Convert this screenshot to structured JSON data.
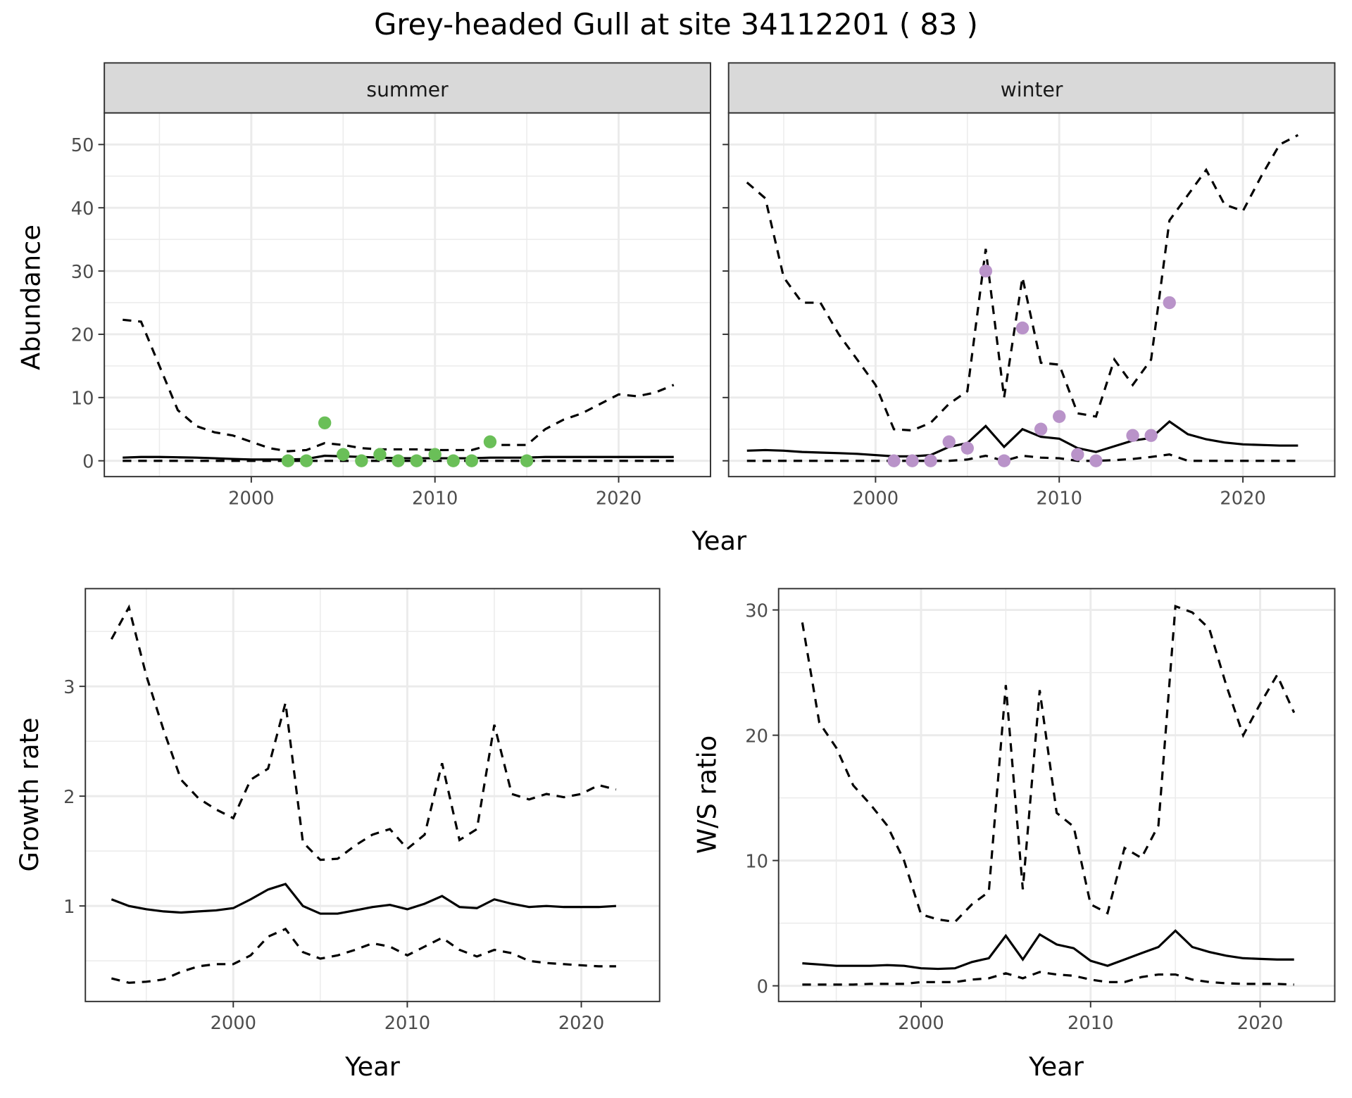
{
  "title": "Grey-headed Gull at site 34112201 ( 83 )",
  "colors": {
    "summer_points": "#6abf58",
    "winter_points": "#b993c9",
    "line": "#000000",
    "grid": "#ebebeb",
    "strip": "#d9d9d9"
  },
  "chart_data": [
    {
      "id": "summer",
      "type": "line",
      "facet": "summer",
      "xlabel": "Year",
      "ylabel": "Abundance",
      "xlim": [
        1992,
        2025
      ],
      "ylim": [
        -2.5,
        55
      ],
      "xticks": [
        2000,
        2010,
        2020
      ],
      "yticks": [
        0,
        10,
        20,
        30,
        40,
        50
      ],
      "x": [
        1993,
        1994,
        1995,
        1996,
        1997,
        1998,
        1999,
        2000,
        2001,
        2002,
        2003,
        2004,
        2005,
        2006,
        2007,
        2008,
        2009,
        2010,
        2011,
        2012,
        2013,
        2014,
        2015,
        2016,
        2017,
        2018,
        2019,
        2020,
        2021,
        2022,
        2023
      ],
      "mean": [
        0.5,
        0.6,
        0.6,
        0.55,
        0.5,
        0.4,
        0.3,
        0.2,
        0.2,
        0.2,
        0.3,
        0.8,
        0.7,
        0.6,
        0.5,
        0.4,
        0.4,
        0.4,
        0.4,
        0.4,
        0.5,
        0.5,
        0.5,
        0.6,
        0.6,
        0.6,
        0.6,
        0.6,
        0.6,
        0.6,
        0.6
      ],
      "lower": [
        0,
        0,
        0,
        0,
        0,
        0,
        0,
        0,
        0,
        0,
        0,
        0,
        0,
        0,
        0,
        0,
        0,
        0,
        0,
        0,
        0,
        0,
        0,
        0,
        0,
        0,
        0,
        0,
        0,
        0,
        0
      ],
      "upper": [
        22.3,
        22,
        15,
        8,
        5.5,
        4.5,
        4,
        3,
        2,
        1.5,
        1.7,
        2.8,
        2.5,
        2,
        1.8,
        1.8,
        1.8,
        1.7,
        1.7,
        1.7,
        2.5,
        2.5,
        2.5,
        5,
        6.5,
        7.5,
        9,
        10.5,
        10.2,
        10.8,
        12
      ],
      "points": {
        "x": [
          2002,
          2003,
          2004,
          2005,
          2006,
          2007,
          2008,
          2009,
          2010,
          2011,
          2012,
          2013,
          2015
        ],
        "y": [
          0,
          0,
          6,
          1,
          0,
          1,
          0,
          0,
          1,
          0,
          0,
          3,
          0
        ]
      }
    },
    {
      "id": "winter",
      "type": "line",
      "facet": "winter",
      "xlabel": "Year",
      "ylabel": "Abundance",
      "xlim": [
        1992,
        2025
      ],
      "ylim": [
        -2.5,
        55
      ],
      "xticks": [
        2000,
        2010,
        2020
      ],
      "yticks": [
        0,
        10,
        20,
        30,
        40,
        50
      ],
      "x": [
        1993,
        1994,
        1995,
        1996,
        1997,
        1998,
        1999,
        2000,
        2001,
        2002,
        2003,
        2004,
        2005,
        2006,
        2007,
        2008,
        2009,
        2010,
        2011,
        2012,
        2013,
        2014,
        2015,
        2016,
        2017,
        2018,
        2019,
        2020,
        2021,
        2022,
        2023
      ],
      "mean": [
        1.6,
        1.7,
        1.6,
        1.4,
        1.3,
        1.2,
        1.1,
        0.9,
        0.7,
        0.7,
        0.9,
        2.2,
        2.8,
        5.5,
        2.2,
        5,
        3.8,
        3.5,
        2,
        1.4,
        2.3,
        3.2,
        3.6,
        6.2,
        4.2,
        3.4,
        2.9,
        2.6,
        2.5,
        2.4,
        2.4
      ],
      "lower": [
        0,
        0,
        0,
        0,
        0,
        0,
        0,
        0,
        0,
        0,
        0,
        0,
        0.2,
        0.8,
        0,
        0.8,
        0.5,
        0.4,
        0,
        0,
        0.1,
        0.3,
        0.6,
        1,
        0,
        0,
        0,
        0,
        0,
        0,
        0
      ],
      "upper": [
        44,
        41.5,
        29,
        25,
        25,
        20,
        16,
        12,
        5,
        4.8,
        6,
        9,
        11,
        33.5,
        10,
        29,
        15.5,
        15.2,
        7.5,
        7,
        16,
        12,
        16,
        38,
        42,
        46,
        40.5,
        39.5,
        45,
        50,
        51.5
      ],
      "points": {
        "x": [
          2001,
          2002,
          2003,
          2004,
          2005,
          2006,
          2007,
          2008,
          2009,
          2010,
          2011,
          2012,
          2014,
          2015,
          2016
        ],
        "y": [
          0,
          0,
          0,
          3,
          2,
          30,
          0,
          21,
          5,
          7,
          1,
          0,
          4,
          4,
          25
        ]
      }
    },
    {
      "id": "growth",
      "type": "line",
      "xlabel": "Year",
      "ylabel": "Growth rate",
      "xlim": [
        1991.5,
        2024.5
      ],
      "ylim": [
        0.13,
        3.89
      ],
      "xticks": [
        2000,
        2010,
        2020
      ],
      "yticks": [
        1,
        2,
        3
      ],
      "x": [
        1993,
        1994,
        1995,
        1996,
        1997,
        1998,
        1999,
        2000,
        2001,
        2002,
        2003,
        2004,
        2005,
        2006,
        2007,
        2008,
        2009,
        2010,
        2011,
        2012,
        2013,
        2014,
        2015,
        2016,
        2017,
        2018,
        2019,
        2020,
        2021,
        2022
      ],
      "mean": [
        1.06,
        1.0,
        0.97,
        0.95,
        0.94,
        0.95,
        0.96,
        0.98,
        1.06,
        1.15,
        1.2,
        1.0,
        0.93,
        0.93,
        0.96,
        0.99,
        1.01,
        0.97,
        1.02,
        1.09,
        0.99,
        0.98,
        1.06,
        1.02,
        0.99,
        1.0,
        0.99,
        0.99,
        0.99,
        1.0
      ],
      "lower": [
        0.34,
        0.3,
        0.31,
        0.33,
        0.4,
        0.45,
        0.47,
        0.47,
        0.55,
        0.72,
        0.79,
        0.58,
        0.52,
        0.55,
        0.6,
        0.66,
        0.63,
        0.55,
        0.63,
        0.71,
        0.6,
        0.54,
        0.6,
        0.57,
        0.5,
        0.48,
        0.47,
        0.46,
        0.45,
        0.45
      ],
      "upper": [
        3.43,
        3.72,
        3.1,
        2.6,
        2.15,
        1.98,
        1.88,
        1.8,
        2.15,
        2.25,
        2.85,
        1.58,
        1.42,
        1.43,
        1.55,
        1.65,
        1.7,
        1.52,
        1.65,
        2.3,
        1.6,
        1.7,
        2.65,
        2.02,
        1.97,
        2.02,
        1.99,
        2.02,
        2.1,
        2.06
      ]
    },
    {
      "id": "ratio",
      "type": "line",
      "xlabel": "Year",
      "ylabel": "W/S ratio",
      "xlim": [
        1991.6,
        2024.4
      ],
      "ylim": [
        -1.25,
        31.7
      ],
      "xticks": [
        2000,
        2010,
        2020
      ],
      "yticks": [
        0,
        10,
        20,
        30
      ],
      "x": [
        1993,
        1994,
        1995,
        1996,
        1997,
        1998,
        1999,
        2000,
        2001,
        2002,
        2003,
        2004,
        2005,
        2006,
        2007,
        2008,
        2009,
        2010,
        2011,
        2012,
        2013,
        2014,
        2015,
        2016,
        2017,
        2018,
        2019,
        2020,
        2021,
        2022
      ],
      "mean": [
        1.8,
        1.7,
        1.6,
        1.6,
        1.6,
        1.65,
        1.6,
        1.4,
        1.35,
        1.4,
        1.9,
        2.2,
        4,
        2.1,
        4.1,
        3.3,
        3,
        2,
        1.6,
        2.1,
        2.6,
        3.1,
        4.4,
        3.1,
        2.7,
        2.4,
        2.2,
        2.15,
        2.1,
        2.1
      ],
      "lower": [
        0.1,
        0.1,
        0.1,
        0.1,
        0.15,
        0.15,
        0.15,
        0.3,
        0.3,
        0.3,
        0.5,
        0.6,
        1.0,
        0.6,
        1.1,
        0.9,
        0.8,
        0.5,
        0.3,
        0.3,
        0.7,
        0.9,
        0.9,
        0.5,
        0.3,
        0.2,
        0.15,
        0.15,
        0.15,
        0.1
      ],
      "upper": [
        29,
        21,
        19,
        16,
        14.5,
        12.8,
        10,
        5.7,
        5.3,
        5.1,
        6.5,
        7.5,
        24,
        7.7,
        23.6,
        13.8,
        12.7,
        6.5,
        5.8,
        11,
        10.2,
        12.8,
        30.3,
        29.8,
        28.5,
        24,
        20,
        22.5,
        24.8,
        21.8
      ]
    }
  ]
}
